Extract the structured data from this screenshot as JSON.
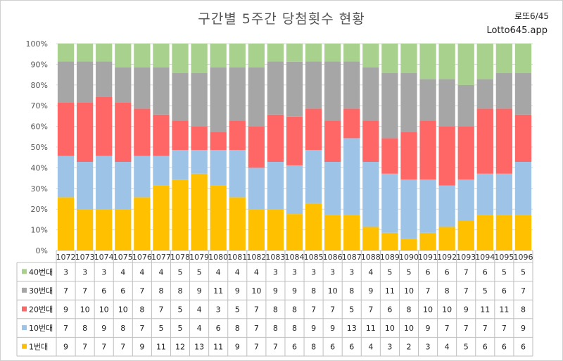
{
  "header": {
    "title": "구간별 5주간 당첨횟수 현황",
    "brand_line1": "로또6/45",
    "brand_line2": "Lotto645.app"
  },
  "colors": {
    "s1": "#FFC000",
    "s10": "#9DC3E6",
    "s20": "#FF6666",
    "s30": "#A6A6A6",
    "s40": "#A9D18E",
    "grid": "#D9D9D9",
    "table_border": "#BFBFBF"
  },
  "chart_data": {
    "type": "bar",
    "stacked": true,
    "normalized": true,
    "title": "구간별 5주간 당첨횟수 현황",
    "yticks": [
      "0%",
      "10%",
      "20%",
      "30%",
      "40%",
      "50%",
      "60%",
      "70%",
      "80%",
      "90%",
      "100%"
    ],
    "ylim": [
      0,
      100
    ],
    "categories": [
      "1072",
      "1073",
      "1074",
      "1075",
      "1076",
      "1077",
      "1078",
      "1079",
      "1080",
      "1081",
      "1082",
      "1083",
      "1084",
      "1085",
      "1086",
      "1087",
      "1088",
      "1089",
      "1090",
      "1091",
      "1092",
      "1093",
      "1094",
      "1095",
      "1096"
    ],
    "series": [
      {
        "name": "40번대",
        "key": "s40",
        "values": [
          3,
          3,
          3,
          4,
          4,
          4,
          5,
          5,
          4,
          4,
          4,
          3,
          3,
          3,
          3,
          3,
          4,
          5,
          5,
          6,
          6,
          7,
          6,
          5,
          5
        ]
      },
      {
        "name": "30번대",
        "key": "s30",
        "values": [
          7,
          7,
          6,
          6,
          7,
          8,
          8,
          9,
          11,
          9,
          10,
          9,
          9,
          8,
          10,
          8,
          9,
          11,
          10,
          7,
          8,
          7,
          5,
          6,
          7
        ]
      },
      {
        "name": "20번대",
        "key": "s20",
        "values": [
          9,
          10,
          10,
          10,
          8,
          7,
          5,
          4,
          3,
          5,
          7,
          8,
          8,
          7,
          7,
          5,
          7,
          6,
          8,
          10,
          10,
          9,
          11,
          11,
          8
        ]
      },
      {
        "name": "10번대",
        "key": "s10",
        "values": [
          7,
          8,
          9,
          8,
          7,
          5,
          5,
          4,
          6,
          8,
          7,
          8,
          8,
          9,
          9,
          13,
          11,
          10,
          10,
          9,
          7,
          7,
          7,
          7,
          9
        ]
      },
      {
        "name": "1번대",
        "key": "s1",
        "values": [
          9,
          7,
          7,
          7,
          9,
          11,
          12,
          13,
          11,
          9,
          7,
          7,
          6,
          8,
          6,
          6,
          4,
          3,
          2,
          3,
          4,
          5,
          6,
          6,
          6
        ]
      }
    ]
  }
}
